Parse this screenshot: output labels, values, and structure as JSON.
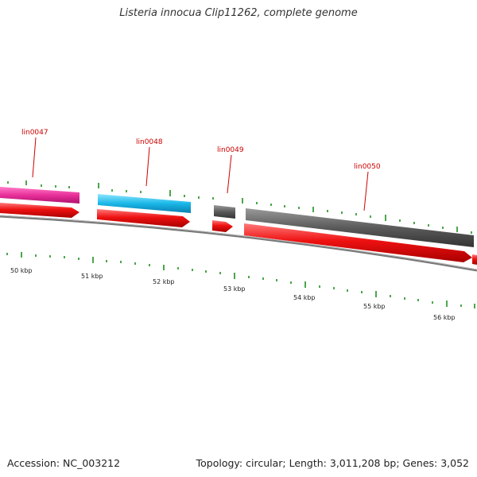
{
  "title": "Listeria innocua Clip11262, complete genome",
  "footer": {
    "accession": "Accession: NC_003212",
    "summary": "Topology: circular; Length: 3,011,208 bp; Genes: 3,052"
  },
  "genes": [
    {
      "label": "lin0047",
      "color": "#e8309a"
    },
    {
      "label": "lin0048",
      "color": "#1ab8e8"
    },
    {
      "label": "lin0049",
      "color": "#555555"
    },
    {
      "label": "lin0050",
      "color": "#555555"
    }
  ],
  "cds_color": "#ee1111",
  "scale": {
    "unit": "kbp",
    "labels": [
      "50 kbp",
      "51 kbp",
      "52 kbp",
      "53 kbp",
      "54 kbp",
      "55 kbp",
      "56 kbp"
    ]
  },
  "colors": {
    "gene_label": "#cc0000",
    "tick": "#118811",
    "backbone": "#777777"
  }
}
